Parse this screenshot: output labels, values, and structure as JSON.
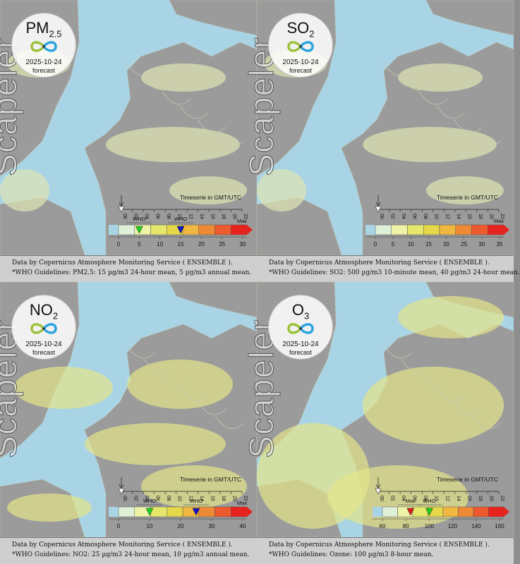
{
  "brand_text": "Scapeler",
  "timeserie_label": "Timeserie in GMT/UTC",
  "hours": [
    "00",
    "02",
    "04",
    "06",
    "08",
    "10",
    "12",
    "14",
    "16",
    "18",
    "20",
    "22"
  ],
  "colors": {
    "water": "#a9d4e6",
    "land": "#9b9b9b",
    "pollution_light": "#dfe6b2",
    "pollution_mid": "#e4e68a",
    "legend_scale": [
      "#dff0d9",
      "#eef3a8",
      "#e6e86c",
      "#e6d84a",
      "#f0b840",
      "#ee8a35",
      "#ec5a2d",
      "#e8231e"
    ]
  },
  "panels": [
    {
      "pollutant": "PM",
      "pollutant_sub": "2.5",
      "date": "2025-10-24",
      "forecast": "forecast",
      "legend_ticks": [
        "0",
        "5",
        "10",
        "15",
        "20",
        "25",
        "30"
      ],
      "markers": [
        {
          "label": "WHO",
          "value": 5,
          "color": "#1fd11f"
        },
        {
          "label": "WHO",
          "value": 15,
          "color": "#1414c8"
        }
      ],
      "max_label": "Max",
      "caption_line1": "Data by Copernicus Atmosphere Monitoring Service ( ENSEMBLE ).",
      "caption_line2": "*WHO Guidelines: PM2.5: 15 µg/m3 24-hour mean, 5 µg/m3 annual mean."
    },
    {
      "pollutant": "SO",
      "pollutant_sub": "2",
      "date": "2025-10-24",
      "forecast": "forecast",
      "legend_ticks": [
        "0",
        "5",
        "10",
        "15",
        "20",
        "25",
        "30",
        "35"
      ],
      "markers": [],
      "max_label": "Max",
      "caption_line1": "Data by Copernicus Atmosphere Monitoring Service ( ENSEMBLE ).",
      "caption_line2": "*WHO Guidelines: SO2: 500 µg/m3 10-minute mean, 40 µg/m3 24-hour mean."
    },
    {
      "pollutant": "NO",
      "pollutant_sub": "2",
      "date": "2025-10-24",
      "forecast": "forecast",
      "legend_ticks": [
        "0",
        "10",
        "20",
        "30",
        "40"
      ],
      "markers": [
        {
          "label": "WHO",
          "value": 10,
          "color": "#1fd11f"
        },
        {
          "label": "WHO",
          "value": 25,
          "color": "#1414c8"
        }
      ],
      "max_label": "Max",
      "caption_line1": "Data by Copernicus Atmosphere Monitoring Service ( ENSEMBLE ).",
      "caption_line2": "*WHO Guidelines: NO2: 25 µg/m3 24-hour mean, 10 µg/m3 annual mean."
    },
    {
      "pollutant": "O",
      "pollutant_sub": "3",
      "date": "2025-10-24",
      "forecast": "forecast",
      "legend_ticks": [
        "60",
        "80",
        "100",
        "120",
        "140",
        "160"
      ],
      "markers": [
        {
          "label": "Max",
          "value": 84,
          "color": "#e01818"
        },
        {
          "label": "WHO",
          "value": 100,
          "color": "#1fd11f"
        }
      ],
      "max_label": "",
      "caption_line1": "Data by Copernicus Atmosphere Monitoring Service ( ENSEMBLE ).",
      "caption_line2": "*WHO Guidelines: Ozone: 100 µg/m3 8-hour mean."
    }
  ]
}
